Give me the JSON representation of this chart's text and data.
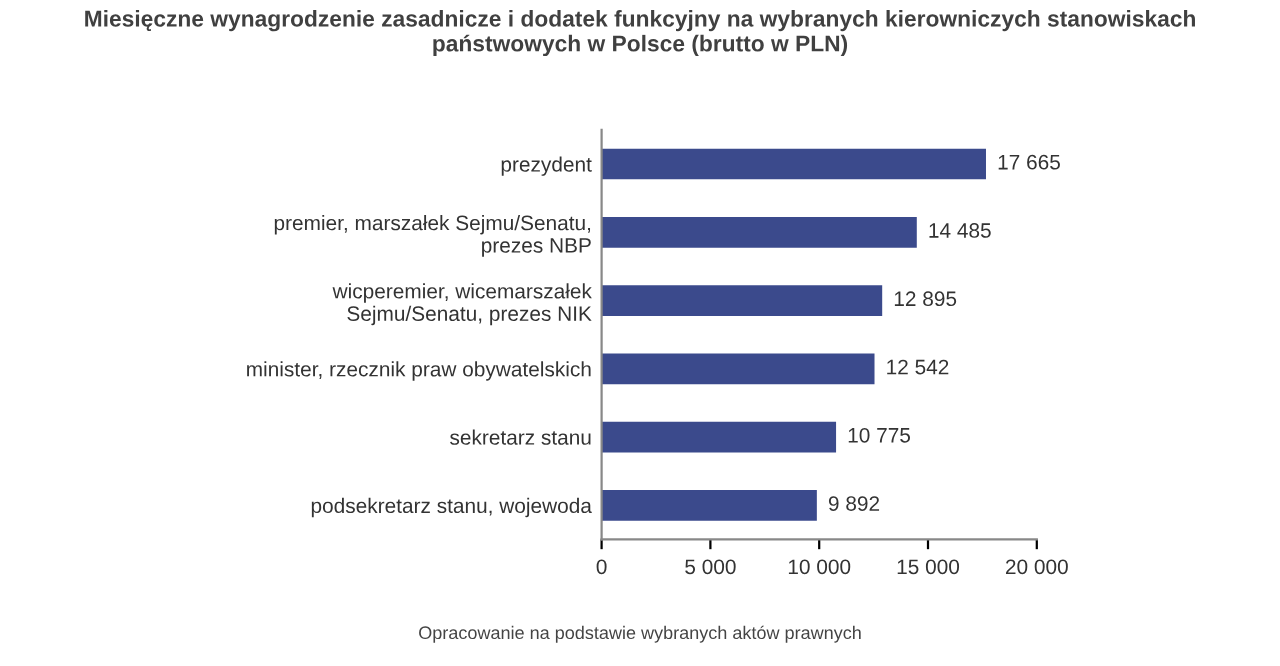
{
  "chart_data": {
    "type": "bar",
    "orientation": "horizontal",
    "title": "Miesięczne wynagrodzenie zasadnicze i dodatek funkcyjny na wybranych kierowniczych stanowiskach\npaństwowych w Polsce (brutto w PLN)",
    "categories": [
      "prezydent",
      "premier, marszałek Sejmu/Senatu,\nprezes NBP",
      "wicperemier, wicemarszałek\nSejmu/Senatu, prezes NIK",
      "minister, rzecznik praw obywatelskich",
      "sekretarz stanu",
      "podsekretarz stanu, wojewoda"
    ],
    "values": [
      17665,
      14485,
      12895,
      12542,
      10775,
      9892
    ],
    "value_labels": [
      "17 665",
      "14 485",
      "12 895",
      "12 542",
      "10 775",
      "9 892"
    ],
    "color": "#3b4a8c",
    "xlim": [
      0,
      20000
    ],
    "xticks": [
      0,
      {
        "value": 5000,
        "label": "5 000"
      },
      {
        "value": 10000,
        "label": "10 000"
      },
      {
        "value": 15000,
        "label": "15 000"
      },
      {
        "value": 20000,
        "label": "20 000"
      }
    ],
    "grid": false,
    "annotations": [
      "Opracowanie na podstawie wybranych aktów prawnych"
    ]
  }
}
